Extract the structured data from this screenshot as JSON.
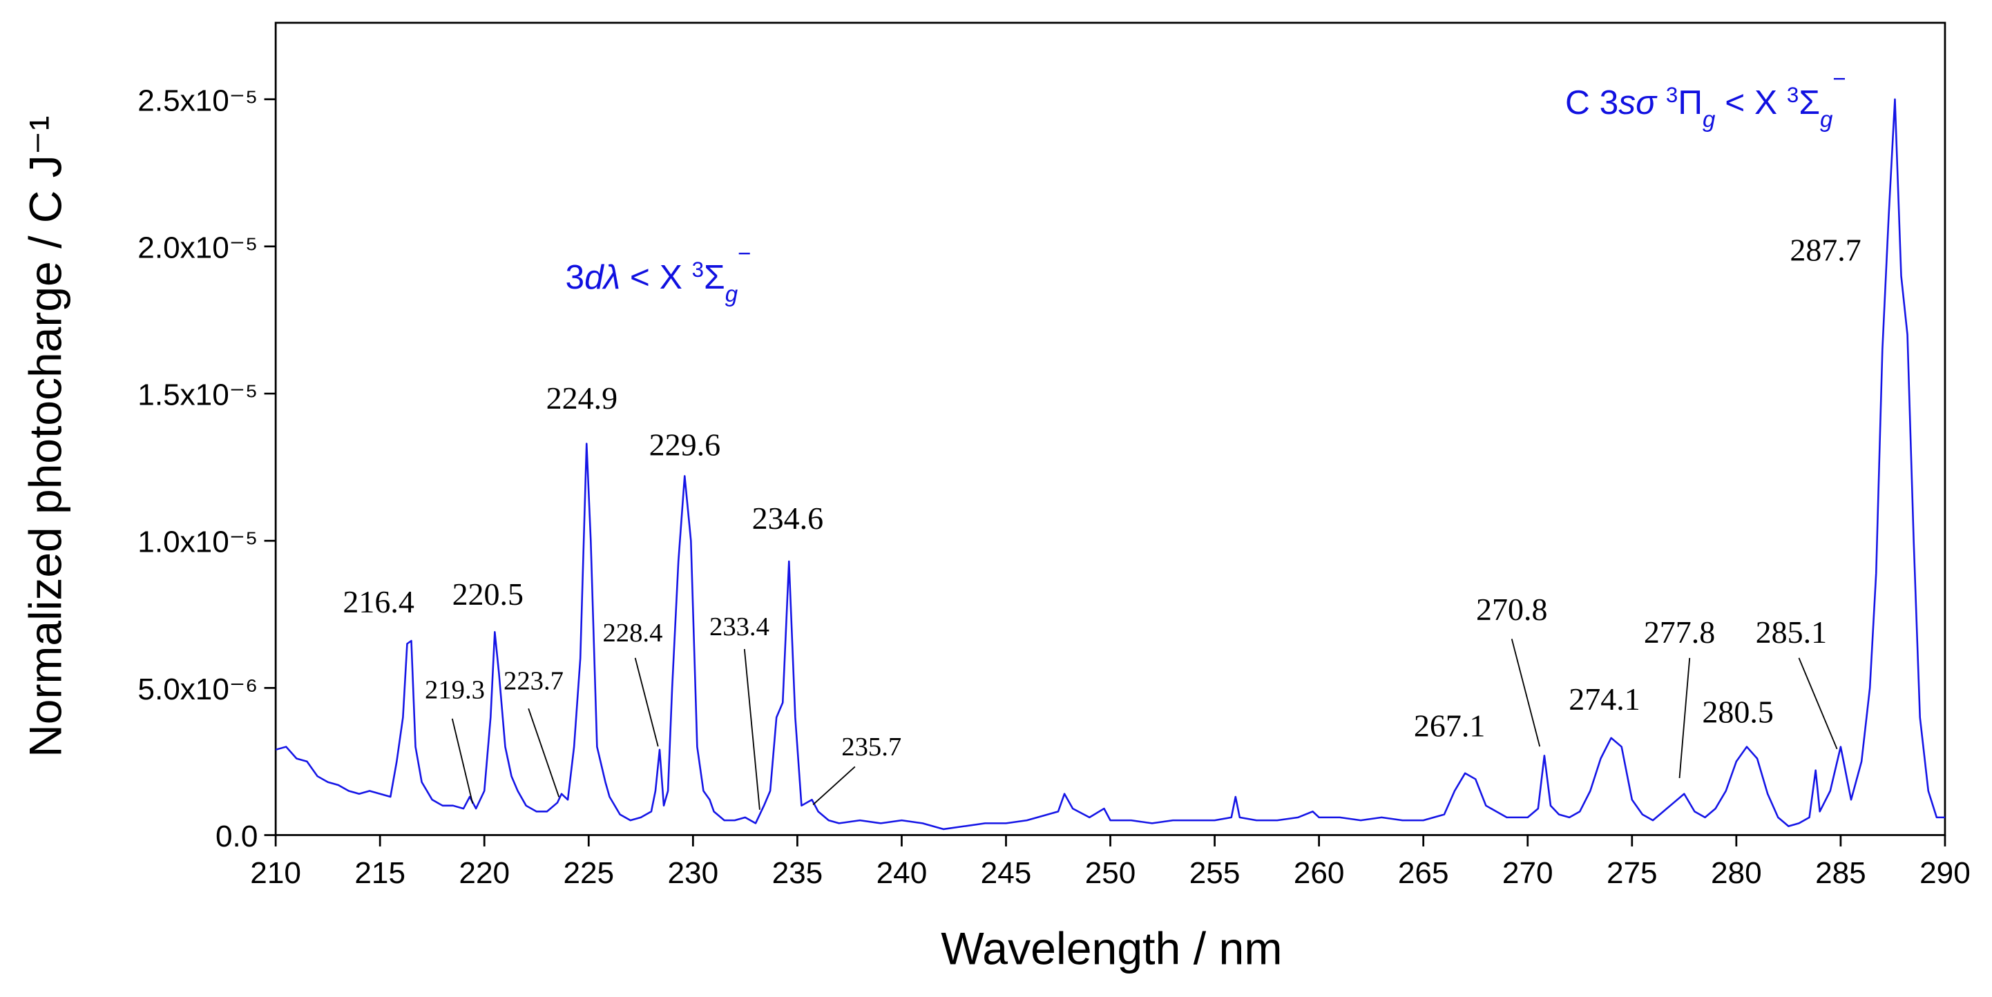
{
  "chart_data": {
    "type": "line",
    "xlabel": "Wavelength / nm",
    "ylabel": "Normalized photocharge / C J⁻¹",
    "color": "#1414e6",
    "xlim": [
      210,
      290
    ],
    "ylim": [
      0,
      2.76e-05
    ],
    "xticks": [
      210,
      215,
      220,
      225,
      230,
      235,
      240,
      245,
      250,
      255,
      260,
      265,
      270,
      275,
      280,
      285,
      290
    ],
    "yticks": [
      {
        "value": 0,
        "label": "0.0"
      },
      {
        "value": 5e-06,
        "label": "5.0x10⁻⁶"
      },
      {
        "value": 1e-05,
        "label": "1.0x10⁻⁵"
      },
      {
        "value": 1.5e-05,
        "label": "1.5x10⁻⁵"
      },
      {
        "value": 2e-05,
        "label": "2.0x10⁻⁵"
      },
      {
        "value": 2.5e-05,
        "label": "2.5x10⁻⁵"
      }
    ],
    "band_labels": [
      [
        "3",
        "dλ",
        " < X ",
        "3",
        "Σ",
        "g",
        "−"
      ],
      [
        "C 3",
        "sσ",
        " ",
        "3",
        "Π",
        "g",
        " < X ",
        "3",
        "Σ",
        "g",
        "−"
      ]
    ],
    "peak_labels": [
      216.4,
      220.5,
      224.9,
      229.6,
      234.6,
      219.3,
      223.7,
      228.4,
      233.4,
      235.7,
      267.1,
      270.8,
      274.1,
      277.8,
      280.5,
      285.1,
      287.7
    ],
    "x": [
      210,
      210.5,
      211,
      211.5,
      212,
      212.5,
      213,
      213.5,
      214,
      214.5,
      215,
      215.5,
      215.8,
      216.1,
      216.3,
      216.5,
      216.7,
      217,
      217.5,
      218,
      218.5,
      219,
      219.3,
      219.6,
      220,
      220.3,
      220.5,
      220.7,
      221,
      221.3,
      221.6,
      222,
      222.5,
      223,
      223.5,
      223.7,
      224,
      224.3,
      224.6,
      224.9,
      225.1,
      225.4,
      225.8,
      226,
      226.5,
      227,
      227.5,
      228,
      228.2,
      228.4,
      228.6,
      228.8,
      229,
      229.3,
      229.6,
      229.9,
      230.2,
      230.5,
      230.8,
      231,
      231.5,
      232,
      232.5,
      233,
      233.4,
      233.7,
      234,
      234.3,
      234.6,
      234.9,
      235.2,
      235.7,
      236,
      236.5,
      237,
      238,
      239,
      240,
      241,
      242,
      243,
      244,
      245,
      246,
      247,
      247.5,
      247.8,
      248.2,
      249,
      249.7,
      250,
      251,
      252,
      253,
      254,
      255,
      255.8,
      256,
      256.2,
      257,
      258,
      259,
      259.7,
      260,
      261,
      262,
      263,
      264,
      265,
      266,
      266.5,
      267,
      267.5,
      268,
      268.5,
      269,
      270,
      270.5,
      270.8,
      271.1,
      271.5,
      272,
      272.5,
      273,
      273.5,
      274,
      274.5,
      275,
      275.5,
      276,
      276.5,
      277,
      277.5,
      278,
      278.5,
      279,
      279.5,
      280,
      280.5,
      281,
      281.5,
      282,
      282.5,
      283,
      283.5,
      283.8,
      284,
      284.5,
      285,
      285.5,
      286,
      286.4,
      286.7,
      287,
      287.3,
      287.6,
      287.9,
      288.2,
      288.5,
      288.8,
      289.2,
      289.6,
      290
    ],
    "values": [
      2.9e-06,
      3e-06,
      2.6e-06,
      2.5e-06,
      2e-06,
      1.8e-06,
      1.7e-06,
      1.5e-06,
      1.4e-06,
      1.5e-06,
      1.4e-06,
      1.3e-06,
      2.5e-06,
      4e-06,
      6.5e-06,
      6.6e-06,
      3e-06,
      1.8e-06,
      1.2e-06,
      1e-06,
      1e-06,
      9e-07,
      1.3e-06,
      9e-07,
      1.5e-06,
      4e-06,
      6.9e-06,
      5.5e-06,
      3e-06,
      2e-06,
      1.5e-06,
      1e-06,
      8e-07,
      8e-07,
      1.1e-06,
      1.4e-06,
      1.2e-06,
      3e-06,
      6e-06,
      1.33e-05,
      1e-05,
      3e-06,
      1.8e-06,
      1.3e-06,
      7e-07,
      5e-07,
      6e-07,
      8e-07,
      1.5e-06,
      2.9e-06,
      1e-06,
      1.5e-06,
      5e-06,
      9.3e-06,
      1.22e-05,
      1e-05,
      3e-06,
      1.5e-06,
      1.2e-06,
      8e-07,
      5e-07,
      5e-07,
      6e-07,
      4e-07,
      1e-06,
      1.5e-06,
      4e-06,
      4.5e-06,
      9.3e-06,
      4e-06,
      1e-06,
      1.2e-06,
      8e-07,
      5e-07,
      4e-07,
      5e-07,
      4e-07,
      5e-07,
      4e-07,
      2e-07,
      3e-07,
      4e-07,
      4e-07,
      5e-07,
      7e-07,
      8e-07,
      1.4e-06,
      9e-07,
      6e-07,
      9e-07,
      5e-07,
      5e-07,
      4e-07,
      5e-07,
      5e-07,
      5e-07,
      6e-07,
      1.3e-06,
      6e-07,
      5e-07,
      5e-07,
      6e-07,
      8e-07,
      6e-07,
      6e-07,
      5e-07,
      6e-07,
      5e-07,
      5e-07,
      7e-07,
      1.5e-06,
      2.1e-06,
      1.9e-06,
      1e-06,
      8e-07,
      6e-07,
      6e-07,
      9e-07,
      2.7e-06,
      1e-06,
      7e-07,
      6e-07,
      8e-07,
      1.5e-06,
      2.6e-06,
      3.3e-06,
      3e-06,
      1.2e-06,
      7e-07,
      5e-07,
      8e-07,
      1.1e-06,
      1.4e-06,
      8e-07,
      6e-07,
      9e-07,
      1.5e-06,
      2.5e-06,
      3e-06,
      2.6e-06,
      1.4e-06,
      6e-07,
      3e-07,
      4e-07,
      6e-07,
      2.2e-06,
      8e-07,
      1.5e-06,
      3e-06,
      1.2e-06,
      2.5e-06,
      5e-06,
      8.9e-06,
      1.65e-05,
      2.1e-05,
      2.5e-05,
      1.9e-05,
      1.7e-05,
      1e-05,
      4e-06,
      1.5e-06,
      6e-07,
      6e-07
    ]
  }
}
